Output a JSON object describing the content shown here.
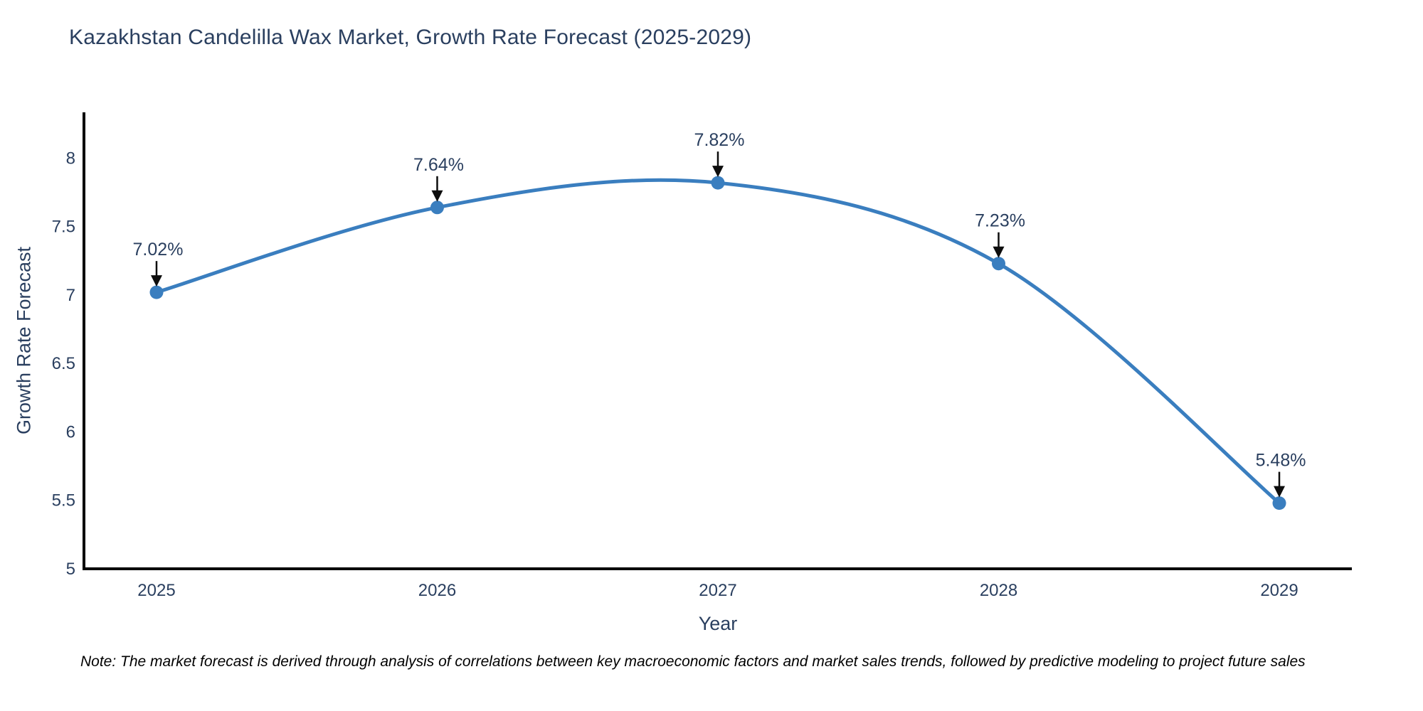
{
  "title": "Kazakhstan Candelilla Wax Market, Growth Rate Forecast (2025-2029)",
  "note": "Note: The market forecast is derived through analysis of correlations between key macroeconomic factors and market sales trends, followed by predictive modeling to project future sales",
  "chart_data": {
    "type": "line",
    "line_shape": "spline",
    "x": [
      2025,
      2026,
      2027,
      2028,
      2029
    ],
    "values": [
      7.02,
      7.64,
      7.82,
      7.23,
      5.48
    ],
    "point_labels": [
      "7.02%",
      "7.64%",
      "7.82%",
      "7.23%",
      "5.48%"
    ],
    "title": "Kazakhstan Candelilla Wax Market, Growth Rate Forecast (2025-2029)",
    "xlabel": "Year",
    "ylabel": "Growth Rate Forecast",
    "xticks": [
      "2025",
      "2026",
      "2027",
      "2028",
      "2029"
    ],
    "yticks": [
      5,
      5.5,
      6,
      6.5,
      7,
      7.5,
      8
    ],
    "xlim": [
      2024.7415,
      2029.2585
    ],
    "ylim": [
      5,
      8.335
    ],
    "grid": false,
    "legend": "none",
    "colors": {
      "line": "#3a7ebf",
      "marker": "#3a7ebf",
      "axis_line": "#000000",
      "text": "#2a3f5f",
      "arrow": "#0d0d0d",
      "background": "#ffffff"
    }
  }
}
